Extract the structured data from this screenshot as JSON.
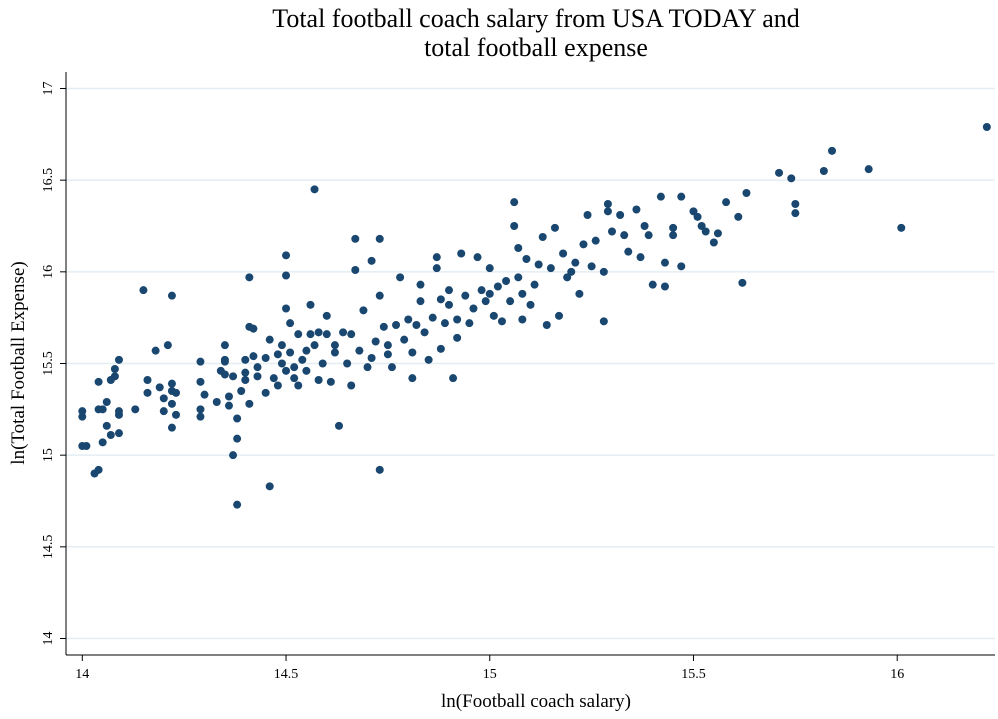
{
  "chart_data": {
    "type": "scatter",
    "title": "Total football coach salary from USA TODAY and\ntotal football expense",
    "x_label": "ln(Football coach salary)",
    "y_label": "ln(Total Football Expense)",
    "color": "#1a476f",
    "grid": true,
    "xlim": [
      13.96,
      16.24
    ],
    "ylim": [
      13.91,
      17.09
    ],
    "xticks": [
      14,
      14.5,
      15,
      15.5,
      16
    ],
    "yticks": [
      14,
      14.5,
      15,
      15.5,
      16,
      16.5,
      17
    ],
    "x": [
      14.0,
      14.0,
      14.0,
      14.01,
      14.03,
      14.04,
      14.04,
      14.05,
      14.04,
      14.06,
      14.06,
      14.05,
      14.07,
      14.08,
      14.07,
      14.09,
      14.09,
      14.09,
      14.09,
      14.08,
      14.13,
      14.15,
      14.16,
      14.16,
      14.18,
      14.19,
      14.2,
      14.2,
      14.21,
      14.22,
      14.22,
      14.22,
      14.22,
      14.22,
      14.23,
      14.23,
      14.29,
      14.29,
      14.29,
      14.29,
      14.3,
      14.33,
      14.34,
      14.35,
      14.35,
      14.35,
      14.35,
      14.36,
      14.36,
      14.37,
      14.37,
      14.38,
      14.38,
      14.38,
      14.39,
      14.4,
      14.4,
      14.4,
      14.41,
      14.41,
      14.41,
      14.42,
      14.42,
      14.43,
      14.43,
      14.45,
      14.45,
      14.46,
      14.46,
      14.47,
      14.48,
      14.48,
      14.49,
      14.49,
      14.5,
      14.5,
      14.5,
      14.5,
      14.51,
      14.51,
      14.52,
      14.52,
      14.53,
      14.53,
      14.54,
      14.55,
      14.55,
      14.56,
      14.56,
      14.57,
      14.57,
      14.58,
      14.58,
      14.59,
      14.6,
      14.6,
      14.61,
      14.62,
      14.62,
      14.63,
      14.64,
      14.65,
      14.66,
      14.66,
      14.67,
      14.67,
      14.68,
      14.69,
      14.7,
      14.71,
      14.71,
      14.72,
      14.73,
      14.73,
      14.73,
      14.74,
      14.75,
      14.75,
      14.76,
      14.77,
      14.78,
      14.79,
      14.8,
      14.81,
      14.81,
      14.82,
      14.83,
      14.83,
      14.84,
      14.85,
      14.86,
      14.87,
      14.87,
      14.88,
      14.88,
      14.89,
      14.9,
      14.9,
      14.91,
      14.92,
      14.92,
      14.93,
      14.94,
      14.95,
      14.96,
      14.97,
      14.98,
      14.99,
      15.0,
      15.0,
      15.01,
      15.02,
      15.03,
      15.04,
      15.05,
      15.06,
      15.06,
      15.07,
      15.07,
      15.08,
      15.08,
      15.09,
      15.1,
      15.11,
      15.12,
      15.13,
      15.14,
      15.15,
      15.16,
      15.17,
      15.18,
      15.19,
      15.2,
      15.21,
      15.22,
      15.23,
      15.24,
      15.25,
      15.26,
      15.28,
      15.28,
      15.29,
      15.29,
      15.3,
      15.32,
      15.33,
      15.34,
      15.36,
      15.37,
      15.38,
      15.39,
      15.4,
      15.42,
      15.43,
      15.43,
      15.45,
      15.45,
      15.47,
      15.47,
      15.5,
      15.51,
      15.52,
      15.53,
      15.55,
      15.56,
      15.58,
      15.61,
      15.62,
      15.63,
      15.71,
      15.74,
      15.75,
      15.75,
      15.82,
      15.84,
      15.93,
      16.01,
      16.22
    ],
    "values": [
      15.24,
      15.21,
      15.05,
      15.05,
      14.9,
      14.92,
      15.25,
      15.25,
      15.4,
      15.29,
      15.16,
      15.07,
      15.41,
      15.43,
      15.11,
      15.12,
      15.24,
      15.22,
      15.52,
      15.47,
      15.25,
      15.9,
      15.41,
      15.34,
      15.57,
      15.37,
      15.31,
      15.24,
      15.6,
      15.87,
      15.39,
      15.35,
      15.28,
      15.15,
      15.22,
      15.34,
      15.51,
      15.4,
      15.25,
      15.21,
      15.33,
      15.29,
      15.46,
      15.44,
      15.51,
      15.52,
      15.6,
      15.32,
      15.27,
      15.43,
      15.0,
      15.09,
      14.73,
      15.2,
      15.35,
      15.45,
      15.41,
      15.52,
      15.7,
      15.97,
      15.28,
      15.54,
      15.69,
      15.48,
      15.43,
      15.34,
      15.53,
      14.83,
      15.63,
      15.42,
      15.55,
      15.38,
      15.5,
      15.6,
      15.46,
      15.8,
      16.09,
      15.98,
      15.72,
      15.56,
      15.42,
      15.48,
      15.66,
      15.38,
      15.52,
      15.57,
      15.46,
      15.66,
      15.82,
      16.45,
      15.6,
      15.41,
      15.67,
      15.5,
      15.66,
      15.76,
      15.4,
      15.56,
      15.6,
      15.16,
      15.67,
      15.5,
      15.38,
      15.66,
      16.18,
      16.01,
      15.57,
      15.79,
      15.48,
      15.53,
      16.06,
      15.62,
      16.18,
      15.87,
      14.92,
      15.7,
      15.6,
      15.55,
      15.48,
      15.71,
      15.97,
      15.63,
      15.74,
      15.56,
      15.42,
      15.71,
      15.84,
      15.93,
      15.67,
      15.52,
      15.75,
      16.02,
      16.08,
      15.85,
      15.58,
      15.72,
      15.82,
      15.9,
      15.42,
      15.74,
      15.64,
      16.1,
      15.87,
      15.72,
      15.8,
      16.08,
      15.9,
      15.84,
      15.88,
      16.02,
      15.76,
      15.92,
      15.73,
      15.95,
      15.84,
      16.25,
      16.38,
      16.13,
      15.97,
      15.88,
      15.74,
      16.07,
      15.82,
      15.93,
      16.04,
      16.19,
      15.71,
      16.02,
      16.24,
      15.76,
      16.1,
      15.97,
      16.0,
      16.05,
      15.88,
      16.15,
      16.31,
      16.03,
      16.17,
      15.73,
      16.0,
      16.33,
      16.37,
      16.22,
      16.31,
      16.2,
      16.11,
      16.34,
      16.08,
      16.25,
      16.2,
      15.93,
      16.41,
      15.92,
      16.05,
      16.24,
      16.2,
      16.03,
      16.41,
      16.33,
      16.3,
      16.25,
      16.22,
      16.16,
      16.21,
      16.38,
      16.3,
      15.94,
      16.43,
      16.54,
      16.51,
      16.37,
      16.32,
      16.55,
      16.66,
      16.56,
      16.24,
      16.79
    ]
  }
}
